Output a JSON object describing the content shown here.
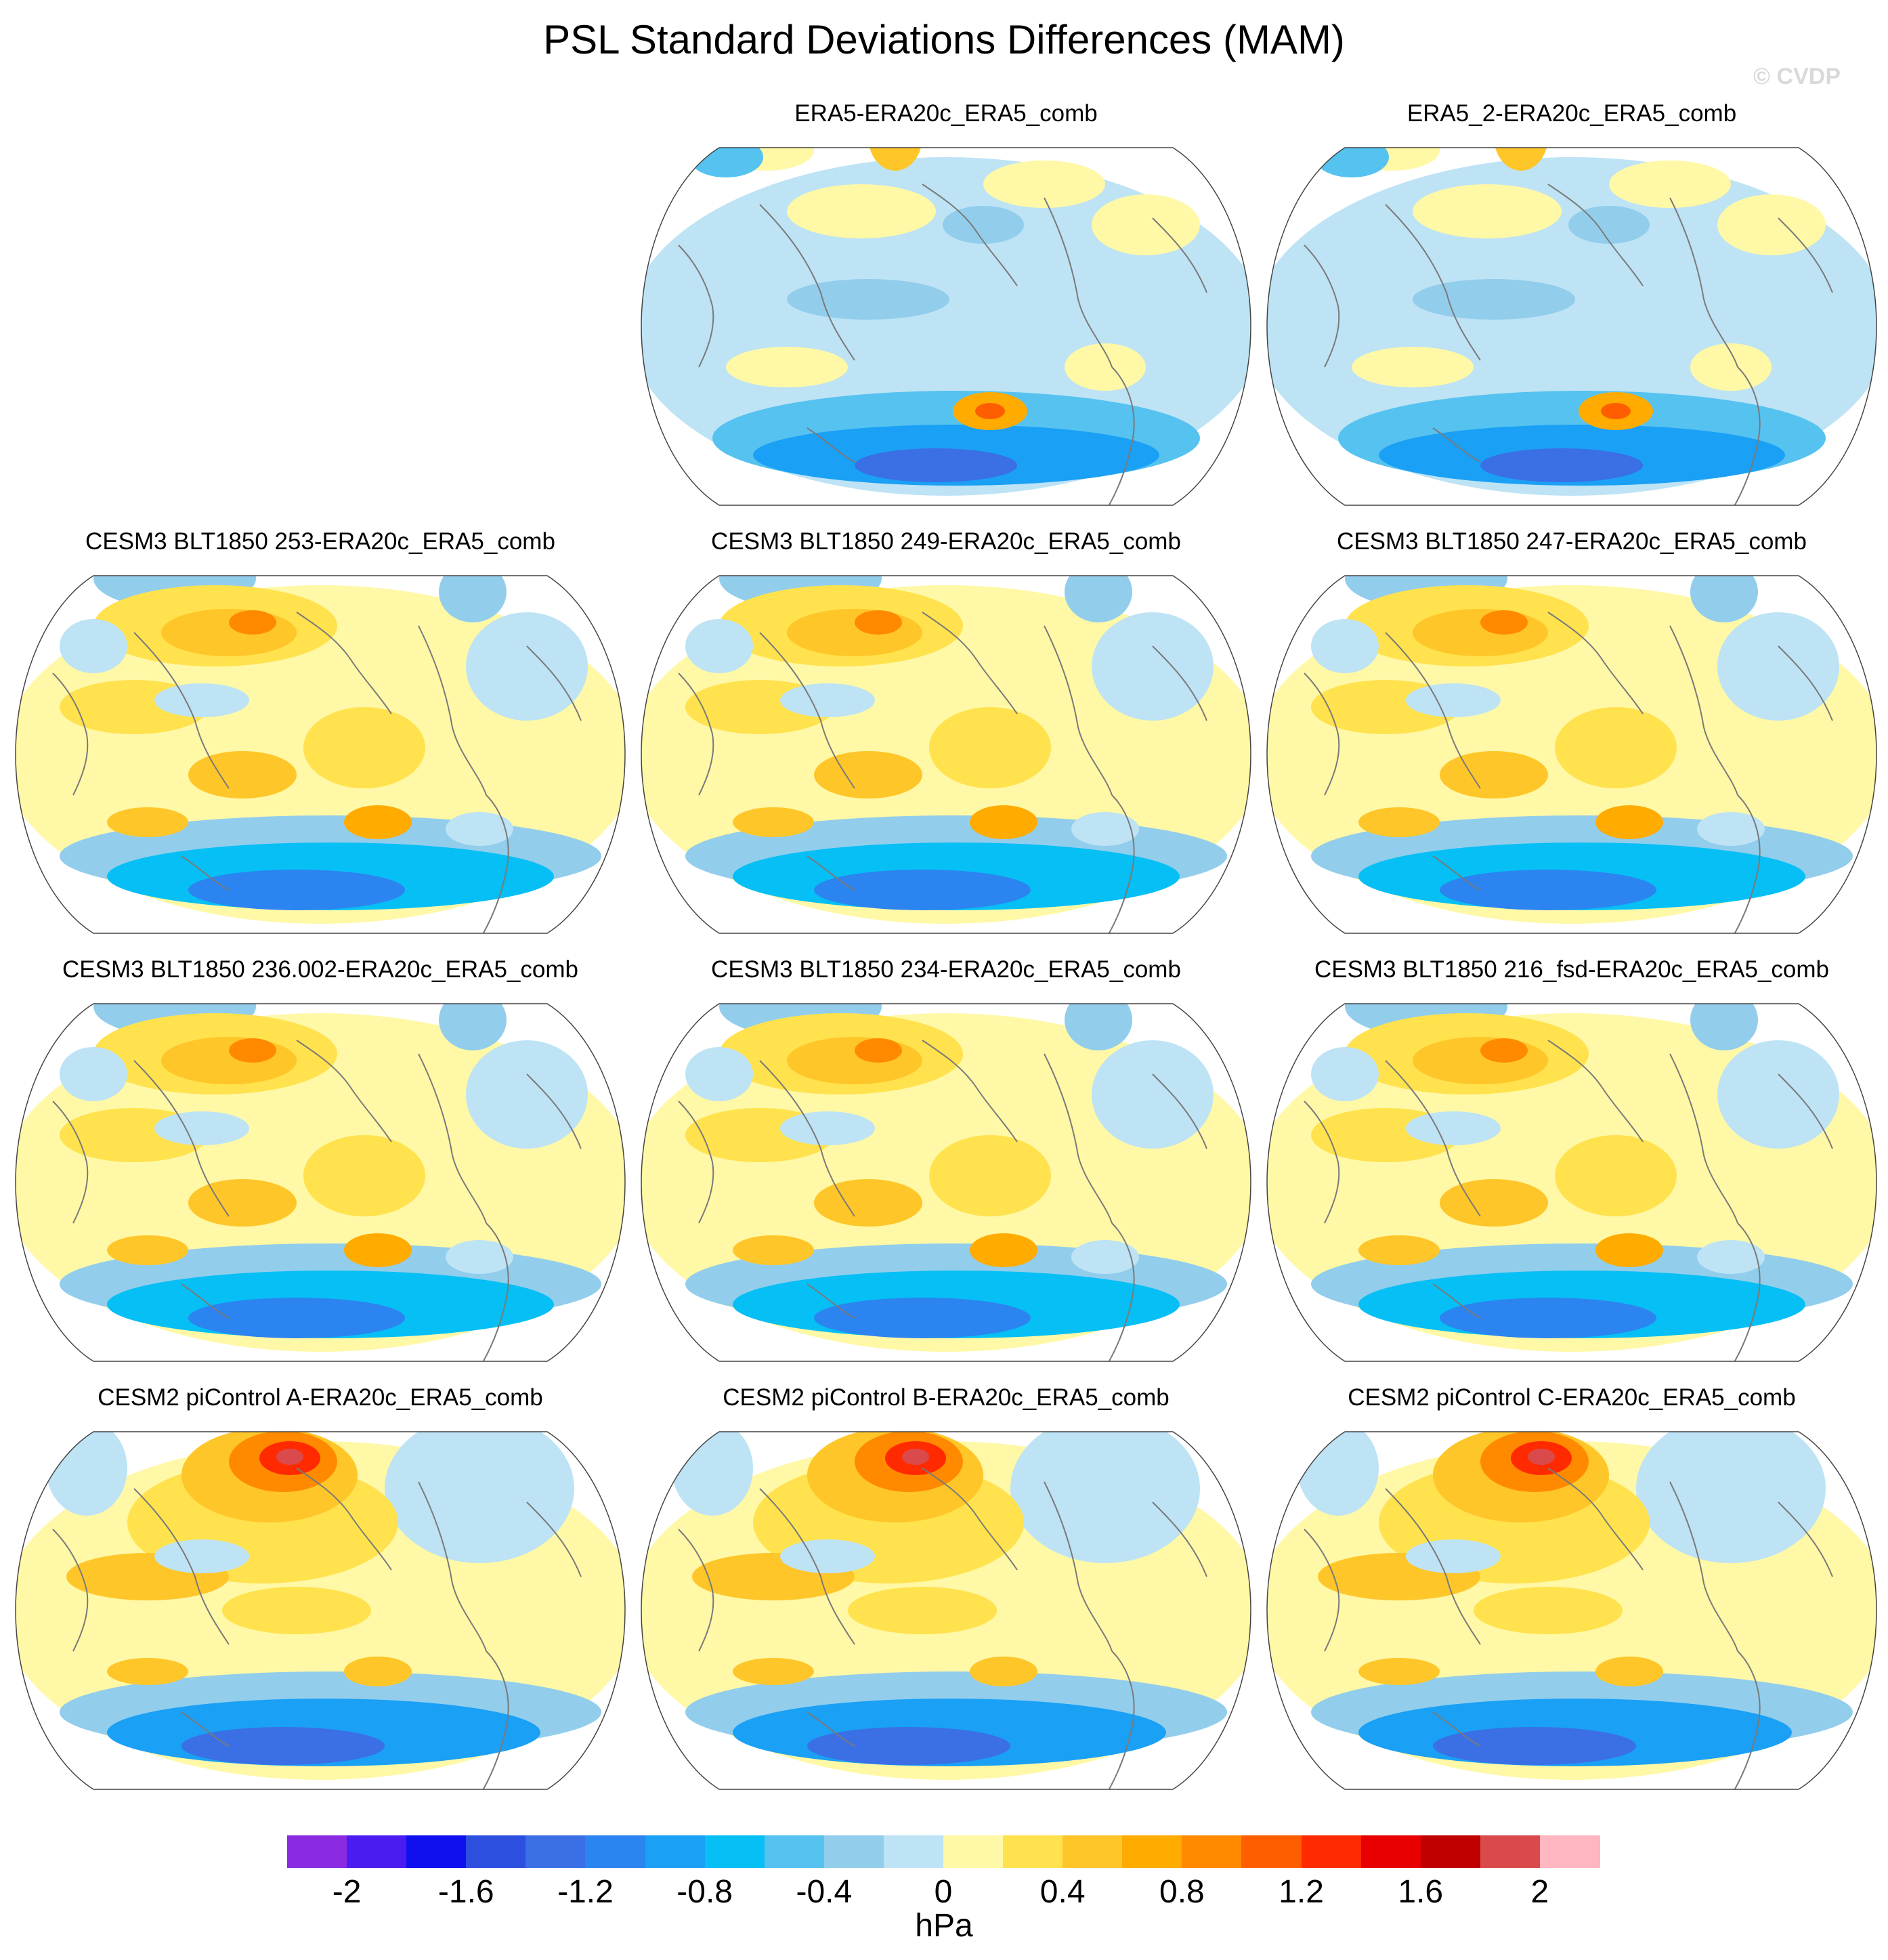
{
  "figure": {
    "title": "PSL Standard Deviations Differences (MAM)",
    "watermark": "© CVDP",
    "units": "hPa",
    "projection": "Robinson (global)"
  },
  "colorbar": {
    "colors": [
      "#8a2be2",
      "#4b1cf0",
      "#1010ee",
      "#2d4fe0",
      "#3a6fe6",
      "#2b84f0",
      "#1aa0f5",
      "#06bff5",
      "#55c2f0",
      "#92cdec",
      "#bde3f5",
      "#fff8a6",
      "#ffe24d",
      "#ffc629",
      "#ffab00",
      "#ff8a00",
      "#ff5e00",
      "#ff2a00",
      "#e80000",
      "#c00000",
      "#db4a4a",
      "#ffb6c1"
    ],
    "tick_labels": [
      "-2",
      "-1.6",
      "-1.2",
      "-0.8",
      "-0.4",
      "0",
      "0.4",
      "0.8",
      "1.2",
      "1.6",
      "2"
    ]
  },
  "panels": [
    {
      "title": "ERA5-ERA20c_ERA5_comb",
      "pattern": "A"
    },
    {
      "title": "ERA5_2-ERA20c_ERA5_comb",
      "pattern": "A"
    },
    {
      "title": "CESM3 BLT1850 253-ERA20c_ERA5_comb",
      "pattern": "B"
    },
    {
      "title": "CESM3 BLT1850 249-ERA20c_ERA5_comb",
      "pattern": "B"
    },
    {
      "title": "CESM3 BLT1850 247-ERA20c_ERA5_comb",
      "pattern": "B"
    },
    {
      "title": "CESM3 BLT1850 236.002-ERA20c_ERA5_comb",
      "pattern": "B"
    },
    {
      "title": "CESM3 BLT1850 234-ERA20c_ERA5_comb",
      "pattern": "B"
    },
    {
      "title": "CESM3 BLT1850 216_fsd-ERA20c_ERA5_comb",
      "pattern": "B"
    },
    {
      "title": "CESM2 piControl A-ERA20c_ERA5_comb",
      "pattern": "C"
    },
    {
      "title": "CESM2 piControl B-ERA20c_ERA5_comb",
      "pattern": "C"
    },
    {
      "title": "CESM2 piControl C-ERA20c_ERA5_comb",
      "pattern": "C"
    }
  ]
}
